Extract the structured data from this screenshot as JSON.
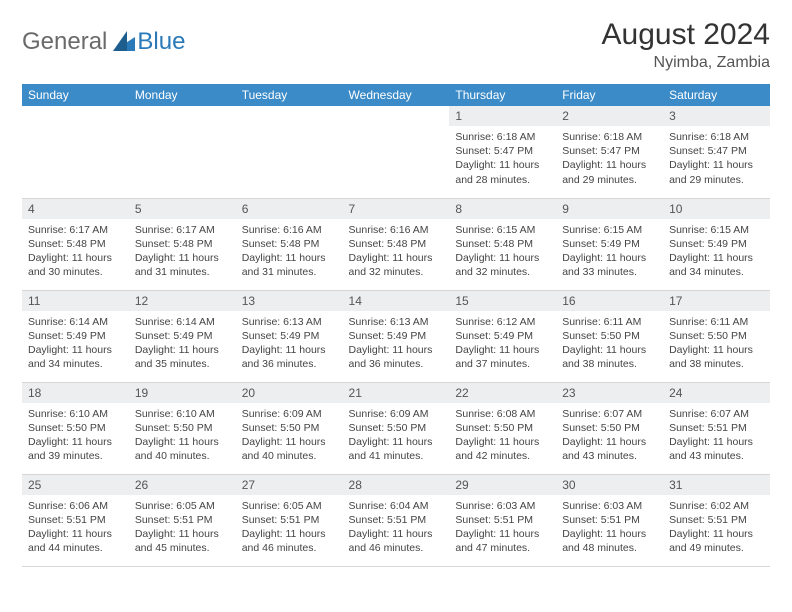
{
  "brand": {
    "general": "General",
    "blue": "Blue"
  },
  "colors": {
    "header_bg": "#3b8bc8",
    "header_fg": "#ffffff",
    "daynum_bg": "#eceef0",
    "text": "#444444",
    "logo_blue": "#2a7ab9",
    "logo_gray": "#6a6a6a"
  },
  "title": "August 2024",
  "location": "Nyimba, Zambia",
  "weekdays": [
    "Sunday",
    "Monday",
    "Tuesday",
    "Wednesday",
    "Thursday",
    "Friday",
    "Saturday"
  ],
  "startOffset": 4,
  "days": [
    {
      "n": 1,
      "sunrise": "6:18 AM",
      "sunset": "5:47 PM",
      "daylight": "11 hours and 28 minutes."
    },
    {
      "n": 2,
      "sunrise": "6:18 AM",
      "sunset": "5:47 PM",
      "daylight": "11 hours and 29 minutes."
    },
    {
      "n": 3,
      "sunrise": "6:18 AM",
      "sunset": "5:47 PM",
      "daylight": "11 hours and 29 minutes."
    },
    {
      "n": 4,
      "sunrise": "6:17 AM",
      "sunset": "5:48 PM",
      "daylight": "11 hours and 30 minutes."
    },
    {
      "n": 5,
      "sunrise": "6:17 AM",
      "sunset": "5:48 PM",
      "daylight": "11 hours and 31 minutes."
    },
    {
      "n": 6,
      "sunrise": "6:16 AM",
      "sunset": "5:48 PM",
      "daylight": "11 hours and 31 minutes."
    },
    {
      "n": 7,
      "sunrise": "6:16 AM",
      "sunset": "5:48 PM",
      "daylight": "11 hours and 32 minutes."
    },
    {
      "n": 8,
      "sunrise": "6:15 AM",
      "sunset": "5:48 PM",
      "daylight": "11 hours and 32 minutes."
    },
    {
      "n": 9,
      "sunrise": "6:15 AM",
      "sunset": "5:49 PM",
      "daylight": "11 hours and 33 minutes."
    },
    {
      "n": 10,
      "sunrise": "6:15 AM",
      "sunset": "5:49 PM",
      "daylight": "11 hours and 34 minutes."
    },
    {
      "n": 11,
      "sunrise": "6:14 AM",
      "sunset": "5:49 PM",
      "daylight": "11 hours and 34 minutes."
    },
    {
      "n": 12,
      "sunrise": "6:14 AM",
      "sunset": "5:49 PM",
      "daylight": "11 hours and 35 minutes."
    },
    {
      "n": 13,
      "sunrise": "6:13 AM",
      "sunset": "5:49 PM",
      "daylight": "11 hours and 36 minutes."
    },
    {
      "n": 14,
      "sunrise": "6:13 AM",
      "sunset": "5:49 PM",
      "daylight": "11 hours and 36 minutes."
    },
    {
      "n": 15,
      "sunrise": "6:12 AM",
      "sunset": "5:49 PM",
      "daylight": "11 hours and 37 minutes."
    },
    {
      "n": 16,
      "sunrise": "6:11 AM",
      "sunset": "5:50 PM",
      "daylight": "11 hours and 38 minutes."
    },
    {
      "n": 17,
      "sunrise": "6:11 AM",
      "sunset": "5:50 PM",
      "daylight": "11 hours and 38 minutes."
    },
    {
      "n": 18,
      "sunrise": "6:10 AM",
      "sunset": "5:50 PM",
      "daylight": "11 hours and 39 minutes."
    },
    {
      "n": 19,
      "sunrise": "6:10 AM",
      "sunset": "5:50 PM",
      "daylight": "11 hours and 40 minutes."
    },
    {
      "n": 20,
      "sunrise": "6:09 AM",
      "sunset": "5:50 PM",
      "daylight": "11 hours and 40 minutes."
    },
    {
      "n": 21,
      "sunrise": "6:09 AM",
      "sunset": "5:50 PM",
      "daylight": "11 hours and 41 minutes."
    },
    {
      "n": 22,
      "sunrise": "6:08 AM",
      "sunset": "5:50 PM",
      "daylight": "11 hours and 42 minutes."
    },
    {
      "n": 23,
      "sunrise": "6:07 AM",
      "sunset": "5:50 PM",
      "daylight": "11 hours and 43 minutes."
    },
    {
      "n": 24,
      "sunrise": "6:07 AM",
      "sunset": "5:51 PM",
      "daylight": "11 hours and 43 minutes."
    },
    {
      "n": 25,
      "sunrise": "6:06 AM",
      "sunset": "5:51 PM",
      "daylight": "11 hours and 44 minutes."
    },
    {
      "n": 26,
      "sunrise": "6:05 AM",
      "sunset": "5:51 PM",
      "daylight": "11 hours and 45 minutes."
    },
    {
      "n": 27,
      "sunrise": "6:05 AM",
      "sunset": "5:51 PM",
      "daylight": "11 hours and 46 minutes."
    },
    {
      "n": 28,
      "sunrise": "6:04 AM",
      "sunset": "5:51 PM",
      "daylight": "11 hours and 46 minutes."
    },
    {
      "n": 29,
      "sunrise": "6:03 AM",
      "sunset": "5:51 PM",
      "daylight": "11 hours and 47 minutes."
    },
    {
      "n": 30,
      "sunrise": "6:03 AM",
      "sunset": "5:51 PM",
      "daylight": "11 hours and 48 minutes."
    },
    {
      "n": 31,
      "sunrise": "6:02 AM",
      "sunset": "5:51 PM",
      "daylight": "11 hours and 49 minutes."
    }
  ]
}
